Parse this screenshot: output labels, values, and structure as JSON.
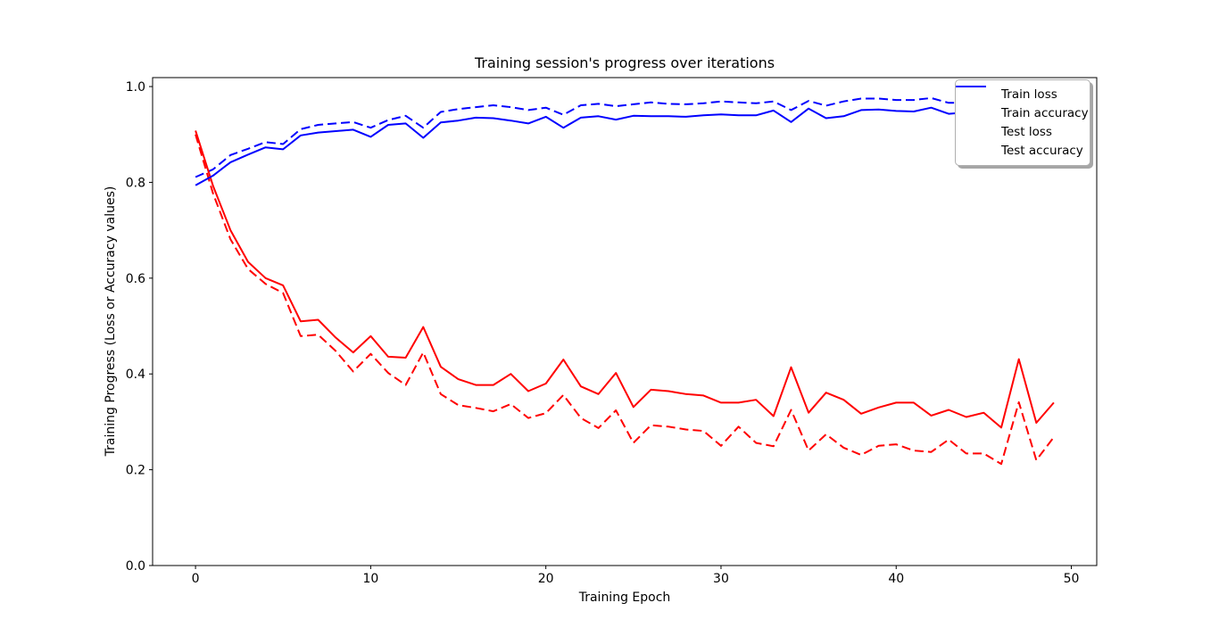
{
  "figure": {
    "title": "Training session's progress over iterations",
    "xlabel": "Training Epoch",
    "ylabel": "Training Progress (Loss or Accuracy values)"
  },
  "legend": {
    "position": "upper right",
    "items": [
      {
        "label": "Train loss",
        "color": "#ff0000",
        "style": "dashed"
      },
      {
        "label": "Train accuracy",
        "color": "#0000ff",
        "style": "dashed"
      },
      {
        "label": "Test loss",
        "color": "#ff0000",
        "style": "solid"
      },
      {
        "label": "Test accuracy",
        "color": "#0000ff",
        "style": "solid"
      }
    ]
  },
  "chart_data": {
    "type": "line",
    "title": "Training session's progress over iterations",
    "xlabel": "Training Epoch",
    "ylabel": "Training Progress (Loss or Accuracy values)",
    "grid": false,
    "legend_position": "upper right",
    "xlim": [
      -2.45,
      51.45
    ],
    "ylim": [
      0,
      1.0187
    ],
    "xticks": [
      "0",
      "10",
      "20",
      "30",
      "40",
      "50"
    ],
    "yticks": [
      "0.0",
      "0.2",
      "0.4",
      "0.6",
      "0.8",
      "1.0"
    ],
    "x": [
      0,
      1,
      2,
      3,
      4,
      5,
      6,
      7,
      8,
      9,
      10,
      11,
      12,
      13,
      14,
      15,
      16,
      17,
      18,
      19,
      20,
      21,
      22,
      23,
      24,
      25,
      26,
      27,
      28,
      29,
      30,
      31,
      32,
      33,
      34,
      35,
      36,
      37,
      38,
      39,
      40,
      41,
      42,
      43,
      44,
      45,
      46,
      47,
      48,
      49
    ],
    "series": [
      {
        "name": "Train loss",
        "color": "#ff0000",
        "linestyle": "dashed",
        "values": [
          0.9,
          0.777,
          0.681,
          0.619,
          0.588,
          0.569,
          0.479,
          0.482,
          0.448,
          0.405,
          0.442,
          0.402,
          0.377,
          0.445,
          0.358,
          0.335,
          0.329,
          0.322,
          0.337,
          0.308,
          0.318,
          0.356,
          0.308,
          0.287,
          0.324,
          0.256,
          0.293,
          0.29,
          0.284,
          0.281,
          0.25,
          0.29,
          0.256,
          0.249,
          0.325,
          0.24,
          0.274,
          0.246,
          0.231,
          0.25,
          0.253,
          0.24,
          0.237,
          0.263,
          0.234,
          0.234,
          0.212,
          0.341,
          0.22,
          0.268
        ]
      },
      {
        "name": "Train accuracy",
        "color": "#0000ff",
        "linestyle": "dashed",
        "values": [
          0.811,
          0.827,
          0.857,
          0.87,
          0.884,
          0.88,
          0.911,
          0.92,
          0.923,
          0.926,
          0.914,
          0.93,
          0.939,
          0.914,
          0.947,
          0.953,
          0.957,
          0.961,
          0.957,
          0.951,
          0.956,
          0.941,
          0.961,
          0.964,
          0.959,
          0.963,
          0.967,
          0.964,
          0.963,
          0.965,
          0.969,
          0.967,
          0.965,
          0.969,
          0.951,
          0.97,
          0.96,
          0.969,
          0.975,
          0.975,
          0.972,
          0.972,
          0.976,
          0.966,
          0.966,
          0.972,
          0.974,
          0.969,
          0.973,
          0.971
        ]
      },
      {
        "name": "Test loss",
        "color": "#ff0000",
        "linestyle": "solid",
        "values": [
          0.908,
          0.793,
          0.7,
          0.634,
          0.6,
          0.585,
          0.51,
          0.513,
          0.476,
          0.445,
          0.479,
          0.436,
          0.434,
          0.498,
          0.415,
          0.389,
          0.377,
          0.377,
          0.4,
          0.364,
          0.38,
          0.43,
          0.374,
          0.358,
          0.402,
          0.331,
          0.367,
          0.364,
          0.358,
          0.355,
          0.34,
          0.34,
          0.346,
          0.312,
          0.414,
          0.319,
          0.361,
          0.346,
          0.317,
          0.33,
          0.34,
          0.34,
          0.313,
          0.325,
          0.31,
          0.319,
          0.288,
          0.431,
          0.298,
          0.34
        ]
      },
      {
        "name": "Test accuracy",
        "color": "#0000ff",
        "linestyle": "solid",
        "values": [
          0.794,
          0.814,
          0.842,
          0.858,
          0.873,
          0.869,
          0.898,
          0.904,
          0.907,
          0.91,
          0.895,
          0.92,
          0.923,
          0.893,
          0.925,
          0.929,
          0.935,
          0.934,
          0.929,
          0.923,
          0.937,
          0.914,
          0.935,
          0.938,
          0.931,
          0.939,
          0.938,
          0.938,
          0.937,
          0.94,
          0.942,
          0.94,
          0.94,
          0.95,
          0.926,
          0.954,
          0.934,
          0.938,
          0.951,
          0.952,
          0.949,
          0.948,
          0.956,
          0.943,
          0.946,
          0.95,
          0.952,
          0.948,
          0.95,
          0.949
        ]
      }
    ]
  }
}
